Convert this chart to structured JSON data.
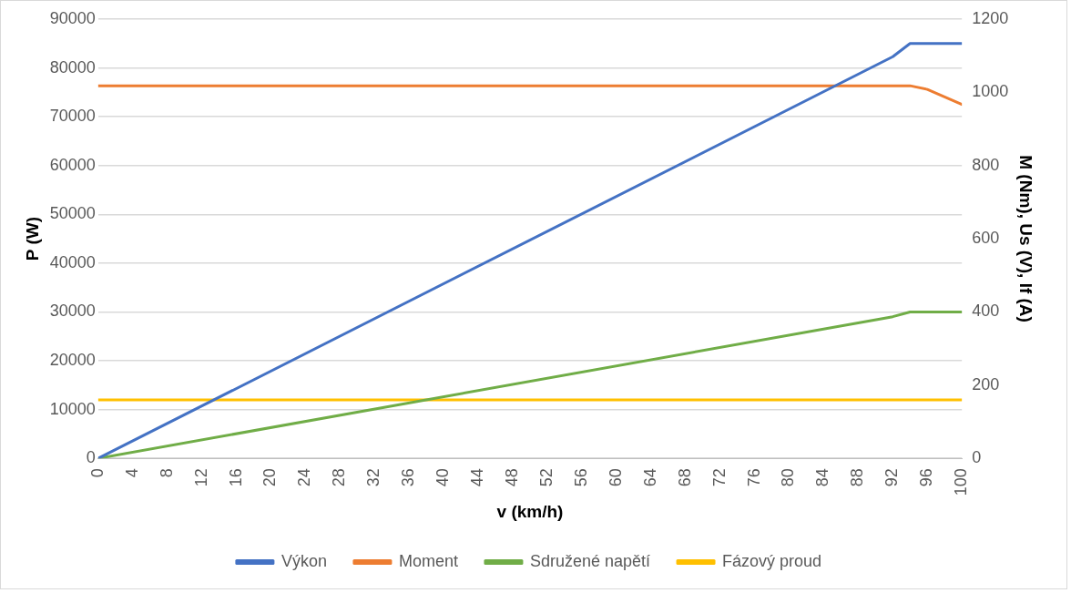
{
  "chart_data": {
    "type": "line",
    "xlabel": "v (km/h)",
    "ylabel": "P (W)",
    "y2label": "M (Nm), Us (V), If (A)",
    "xlim": [
      0,
      100
    ],
    "xticks": [
      0,
      4,
      8,
      12,
      16,
      20,
      24,
      28,
      32,
      36,
      40,
      44,
      48,
      52,
      56,
      60,
      64,
      68,
      72,
      76,
      80,
      84,
      88,
      92,
      96,
      100
    ],
    "ylim": [
      0,
      90000
    ],
    "yticks": [
      0,
      10000,
      20000,
      30000,
      40000,
      50000,
      60000,
      70000,
      80000,
      90000
    ],
    "y2lim": [
      0,
      1200
    ],
    "y2ticks": [
      0,
      200,
      400,
      600,
      800,
      1000,
      1200
    ],
    "grid": "y",
    "legend": "bottom",
    "marker": "none",
    "line_style": "solid",
    "series": [
      {
        "name": "Výkon",
        "color": "#4472c4",
        "x": [
          0,
          92,
          94,
          100
        ],
        "values": [
          0,
          82300,
          85000,
          85000
        ]
      },
      {
        "name": "Moment",
        "color": "#ed7d31",
        "axis": "y2",
        "x": [
          0,
          94,
          96,
          100
        ],
        "values": [
          1018,
          1018,
          1008,
          967
        ]
      },
      {
        "name": "Sdružené napětí",
        "color": "#70ad47",
        "axis": "y2",
        "x": [
          0,
          92,
          94,
          100
        ],
        "values": [
          0,
          387,
          400,
          400
        ]
      },
      {
        "name": "Fázový proud",
        "color": "#ffc000",
        "axis": "y2",
        "x": [
          0,
          100
        ],
        "values": [
          160,
          160
        ]
      }
    ]
  }
}
